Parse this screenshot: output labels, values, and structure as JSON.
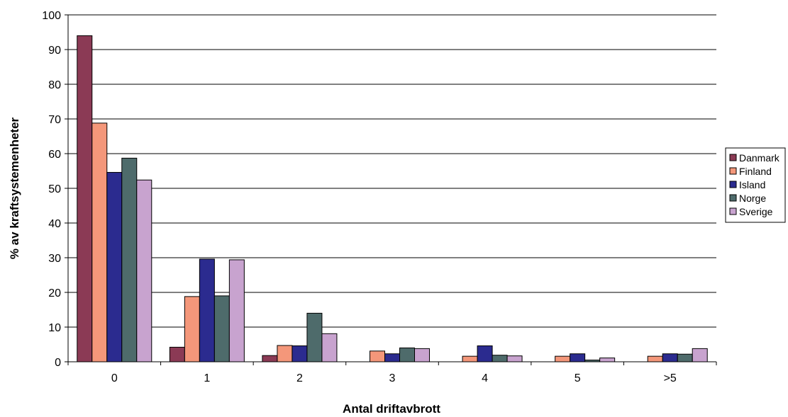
{
  "chart_data": {
    "type": "bar",
    "title": "",
    "xlabel": "Antal driftavbrott",
    "ylabel": "% av kraftsystemenheter",
    "categories": [
      "0",
      "1",
      "2",
      "3",
      "4",
      "5",
      ">5"
    ],
    "ylim": [
      0,
      100
    ],
    "yticks": [
      "0",
      "10",
      "20",
      "30",
      "40",
      "50",
      "60",
      "70",
      "80",
      "90",
      "100"
    ],
    "grid": "horizontal",
    "legend_position": "right",
    "series": [
      {
        "name": "Danmark",
        "color": "#8b3a55",
        "values": [
          94,
          4.2,
          1.8,
          0,
          0,
          0,
          0
        ]
      },
      {
        "name": "Finland",
        "color": "#f4977a",
        "values": [
          68.8,
          18.8,
          4.7,
          3.1,
          1.6,
          1.6,
          1.6
        ]
      },
      {
        "name": "Island",
        "color": "#2b2b8f",
        "values": [
          54.6,
          29.6,
          4.6,
          2.3,
          4.6,
          2.3,
          2.3
        ]
      },
      {
        "name": "Norge",
        "color": "#4e6b6b",
        "values": [
          58.7,
          19.0,
          14.0,
          4.0,
          1.9,
          0.5,
          2.2
        ]
      },
      {
        "name": "Sverige",
        "color": "#c8a3cf",
        "values": [
          52.4,
          29.4,
          8.1,
          3.8,
          1.7,
          1.1,
          3.8
        ]
      }
    ]
  }
}
